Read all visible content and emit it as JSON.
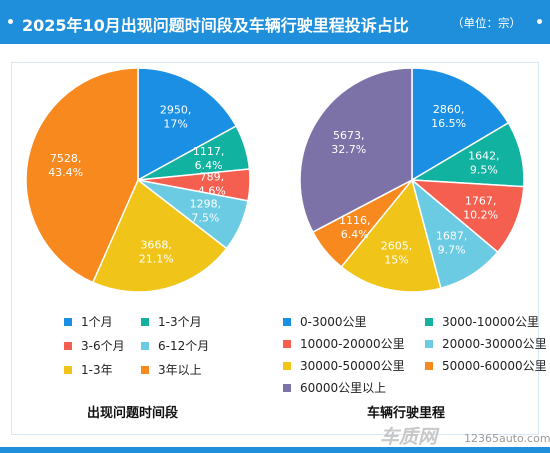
{
  "header": {
    "title": "2025年10月出现问题时间段及车辆行驶里程投诉占比",
    "unit": "（单位：宗）",
    "color": "#1f8fdc"
  },
  "chart_data": [
    {
      "type": "pie",
      "title": "出现问题时间段",
      "legend_placement": "bottom",
      "slices": [
        {
          "name": "1个月",
          "value": 2950,
          "percent": "17%",
          "color": "#1a8fe3"
        },
        {
          "name": "1-3个月",
          "value": 1117,
          "percent": "6.4%",
          "color": "#12b2a0"
        },
        {
          "name": "3-6个月",
          "value": 789,
          "percent": "4.6%",
          "color": "#f45f4f"
        },
        {
          "name": "6-12个月",
          "value": 1298,
          "percent": "7.5%",
          "color": "#6bcbe3"
        },
        {
          "name": "1-3年",
          "value": 3668,
          "percent": "21.1%",
          "color": "#f0c419"
        },
        {
          "name": "3年以上",
          "value": 7528,
          "percent": "43.4%",
          "color": "#f7891f"
        }
      ]
    },
    {
      "type": "pie",
      "title": "车辆行驶里程",
      "legend_placement": "bottom",
      "slices": [
        {
          "name": "0-3000公里",
          "value": 2860,
          "percent": "16.5%",
          "color": "#1a8fe3"
        },
        {
          "name": "3000-10000公里",
          "value": 1642,
          "percent": "9.5%",
          "color": "#12b2a0"
        },
        {
          "name": "10000-20000公里",
          "value": 1767,
          "percent": "10.2%",
          "color": "#f45f4f"
        },
        {
          "name": "20000-30000公里",
          "value": 1687,
          "percent": "9.7%",
          "color": "#6bcbe3"
        },
        {
          "name": "30000-50000公里",
          "value": 2605,
          "percent": "15%",
          "color": "#f0c419"
        },
        {
          "name": "50000-60000公里",
          "value": 1116,
          "percent": "6.4%",
          "color": "#f7891f"
        },
        {
          "name": "60000公里以上",
          "value": 5673,
          "percent": "32.7%",
          "color": "#7d72a8"
        }
      ]
    }
  ],
  "logo": {
    "main": "车质网",
    "sub": "12365auto.com"
  }
}
